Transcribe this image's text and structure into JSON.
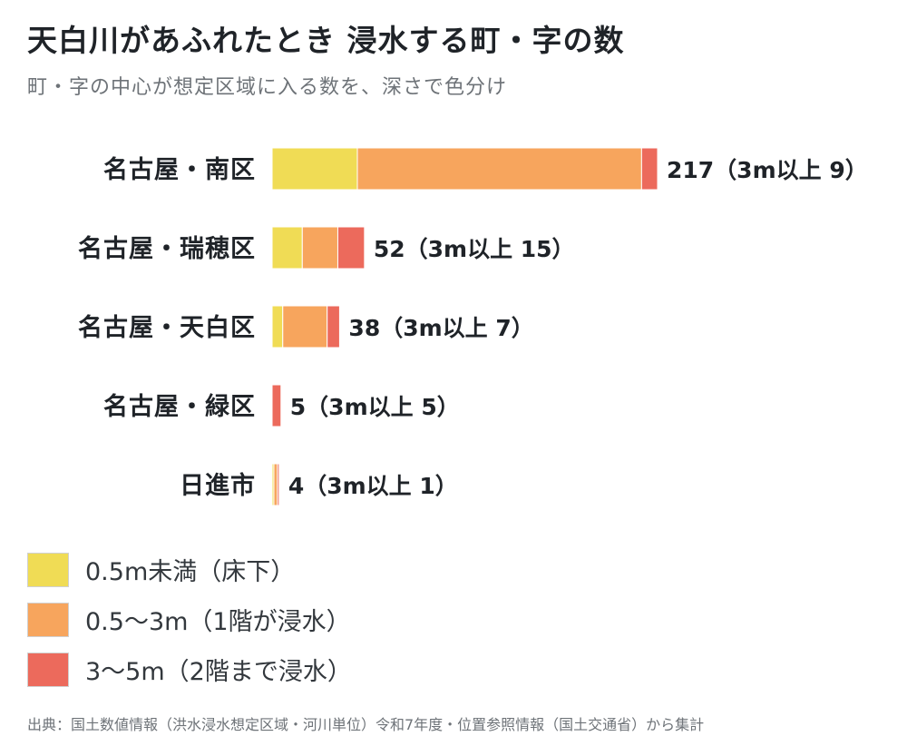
{
  "title": "天白川があふれたとき 浸水する町・字の数",
  "subtitle": "町・字の中心が想定区域に入る数を、深さで色分け",
  "source": "出典：国土数値情報（洪水浸水想定区域・河川単位）令和7年度・位置参照情報（国土交通省）から集計",
  "legend": [
    {
      "label": "0.5m未満（床下）",
      "color": "#f0dc55"
    },
    {
      "label": "0.5〜3m（1階が浸水）",
      "color": "#f7a55d"
    },
    {
      "label": "3〜5m（2階まで浸水）",
      "color": "#ec6a5c"
    }
  ],
  "chart_data": {
    "type": "bar",
    "orientation": "horizontal",
    "stacked": true,
    "categories": [
      "名古屋・南区",
      "名古屋・瑞穂区",
      "名古屋・天白区",
      "名古屋・緑区",
      "日進市"
    ],
    "series": [
      {
        "name": "0.5m未満（床下）",
        "color": "#f0dc55",
        "values": [
          48,
          17,
          6,
          0,
          1
        ]
      },
      {
        "name": "0.5〜3m（1階が浸水）",
        "color": "#f7a55d",
        "values": [
          160,
          20,
          25,
          0,
          2
        ]
      },
      {
        "name": "3〜5m（2階まで浸水）",
        "color": "#ec6a5c",
        "values": [
          9,
          15,
          7,
          5,
          1
        ]
      }
    ],
    "value_labels": [
      "217（3m以上 9）",
      "52（3m以上 15）",
      "38（3m以上 7）",
      "5（3m以上 5）",
      "4（3m以上 1）"
    ],
    "xlim": [
      0,
      217
    ],
    "grid": false
  }
}
